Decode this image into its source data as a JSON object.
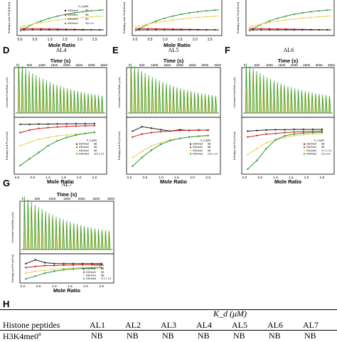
{
  "panels_top": [
    {
      "x_axis_label": "Mole Ratio",
      "y_axis_label": "Enthalpy and Fit (kJ/mol)",
      "legend_header": "K_d (μM)",
      "legend": [
        {
          "peptide": "H3K4me0",
          "kd": "NB",
          "color": "#222222"
        },
        {
          "peptide": "H3K4me1",
          "kd": "NB",
          "color": "#cc2222"
        },
        {
          "peptide": "H3K4me2",
          "kd": "ND",
          "color": "#e8d35a"
        },
        {
          "peptide": "H3K4me3",
          "kd": "30.0 ± 2",
          "color": "#2e9a3a"
        }
      ]
    },
    {
      "x_axis_label": "Mole Ratio",
      "y_axis_label": "Enthalpy and Fit (kJ/mol)"
    },
    {
      "y_axis_label": "Enthalpy and Fit (kJ/mol)"
    }
  ],
  "panels": [
    {
      "letter": "D",
      "title": "AL4",
      "time_axis_label": "Time (s)",
      "time_ticks": [
        "0",
        "500",
        "1000",
        "1500",
        "2000",
        "2500",
        "3000",
        "3500"
      ],
      "y_top_label": "Corrected Heat Rate (μJ/s)",
      "y_bottom_label": "Enthalpy and Fit (kJ/mol)",
      "x_axis_label": "Mole Ratio",
      "mole_ticks": [
        "0.0",
        "0.5",
        "1.0",
        "1.5",
        "2.0",
        "2.5"
      ],
      "legend_header": "K_d (μM)",
      "legend": [
        {
          "peptide": "H3K4me0",
          "kd": "NB",
          "color": "#222222"
        },
        {
          "peptide": "H3K4me1",
          "kd": "NB",
          "color": "#cc2222"
        },
        {
          "peptide": "H3K4me2",
          "kd": "NB",
          "color": "#e8d35a"
        },
        {
          "peptide": "H3K4me3",
          "kd": "22.0 ± 1.9",
          "color": "#2e9a3a"
        }
      ]
    },
    {
      "letter": "E",
      "title": "AL5",
      "time_axis_label": "Time (s)",
      "time_ticks": [
        "0",
        "500",
        "1000",
        "1500",
        "2000",
        "2500",
        "3000",
        "3500"
      ],
      "y_top_label": "Corrected Heat Rate (μJ/s)",
      "y_bottom_label": "Enthalpy and Fit (kJ/mol)",
      "x_axis_label": "Mole Ratio",
      "mole_ticks": [
        "0.0",
        "0.5",
        "1.0",
        "1.5",
        "2.0",
        "2.5"
      ],
      "legend_header": "K_d (μM)",
      "legend": [
        {
          "peptide": "H3K4me0",
          "kd": "NB",
          "color": "#222222"
        },
        {
          "peptide": "H3K4me1",
          "kd": "NB",
          "color": "#cc2222"
        },
        {
          "peptide": "H3K4me2",
          "kd": "NB",
          "color": "#e8d35a"
        },
        {
          "peptide": "H3K4me3",
          "kd": "22.0 ± 1.9",
          "color": "#2e9a3a"
        }
      ]
    },
    {
      "letter": "F",
      "title": "AL6",
      "time_axis_label": "Time (s)",
      "time_ticks": [
        "0",
        "500",
        "1000",
        "1500",
        "2000",
        "2500",
        "3000",
        "3500"
      ],
      "y_top_label": "Corrected Heat Rate (μJ/s)",
      "y_bottom_label": "Enthalpy and Fit (kJ/mol)",
      "x_axis_label": "Mole Ratio",
      "mole_ticks": [
        "0.0",
        "0.5",
        "1.0",
        "1.5",
        "2.0",
        "2.5"
      ],
      "legend_header": "K_d (μM)",
      "legend": [
        {
          "peptide": "H3K4me0",
          "kd": "NB",
          "color": "#222222"
        },
        {
          "peptide": "H3K4me1",
          "kd": "NB",
          "color": "#cc2222"
        },
        {
          "peptide": "H3K4me2",
          "kd": "17.1 ± 1.5",
          "color": "#e8d35a"
        },
        {
          "peptide": "H3K4me3",
          "kd": "0.9 ± 0.9",
          "color": "#2e9a3a"
        }
      ]
    },
    {
      "letter": "G",
      "title": "AL7",
      "time_axis_label": "Time (s)",
      "time_ticks": [
        "0",
        "500",
        "1000",
        "1500",
        "2000",
        "2500",
        "3000"
      ],
      "y_top_label": "Corrected Heat Rate (μJ/s)",
      "y_bottom_label": "Enthalpy and Fit (kJ/mol)",
      "x_axis_label": "Mole Ratio",
      "mole_ticks": [
        "0.0",
        "0.5",
        "1.0",
        "1.5",
        "2.0",
        "2.5"
      ],
      "legend_header": "K_d (μM)",
      "legend": [
        {
          "peptide": "H3K4me0",
          "kd": "NB",
          "color": "#222222"
        },
        {
          "peptide": "H3K4me1",
          "kd": "NB",
          "color": "#cc2222"
        },
        {
          "peptide": "H3K4me2",
          "kd": "NB",
          "color": "#e8d35a"
        },
        {
          "peptide": "H3K4me3",
          "kd": "27.2 ± 1.5",
          "color": "#2e9a3a"
        }
      ]
    }
  ],
  "table": {
    "letter": "H",
    "kd_header": "K_d (μM)",
    "col_header_first": "Histone peptides",
    "columns": [
      "AL1",
      "AL2",
      "AL3",
      "AL4",
      "AL5",
      "AL6",
      "AL7"
    ],
    "rows": [
      {
        "peptide": "H3K4me0",
        "superscript": "a",
        "values": [
          "NB",
          "NB",
          "NB",
          "NB",
          "NB",
          "NB",
          "NB"
        ]
      }
    ]
  },
  "chart_data": [
    {
      "type": "scatter",
      "panel": "D",
      "title": "AL4",
      "xlabel": "Mole Ratio",
      "ylabel": "Enthalpy and Fit (kJ/mol)",
      "xlim": [
        0,
        2.8
      ],
      "ylim": [
        -30,
        2
      ],
      "series": [
        {
          "name": "H3K4me0",
          "color": "#222222",
          "x": [
            0.1,
            0.4,
            0.7,
            1.0,
            1.3,
            1.6,
            1.9,
            2.2,
            2.5
          ],
          "y": [
            -1,
            -1,
            -0.8,
            -0.8,
            -0.7,
            -0.7,
            -0.6,
            -0.6,
            -0.6
          ]
        },
        {
          "name": "H3K4me1",
          "color": "#cc2222",
          "x": [
            0.1,
            0.4,
            0.7,
            1.0,
            1.3,
            1.6,
            1.9,
            2.2,
            2.5
          ],
          "y": [
            -6,
            -4.5,
            -3.5,
            -3,
            -2.6,
            -2.3,
            -2,
            -1.9,
            -1.8
          ]
        },
        {
          "name": "H3K4me2",
          "color": "#e8d35a",
          "x": [
            0.1,
            0.4,
            0.7,
            1.0,
            1.3,
            1.6,
            1.9,
            2.2,
            2.5
          ],
          "y": [
            -14,
            -12,
            -10,
            -9,
            -8,
            -7.5,
            -7,
            -6.5,
            -6
          ]
        },
        {
          "name": "H3K4me3",
          "color": "#2e9a3a",
          "x": [
            0.1,
            0.4,
            0.7,
            1.0,
            1.3,
            1.6,
            1.9,
            2.2,
            2.5
          ],
          "y": [
            -26,
            -22,
            -18,
            -14,
            -11,
            -9,
            -7.5,
            -6.5,
            -5.8
          ]
        }
      ]
    },
    {
      "type": "scatter",
      "panel": "E",
      "title": "AL5",
      "xlabel": "Mole Ratio",
      "ylabel": "Enthalpy and Fit (kJ/mol)",
      "xlim": [
        0,
        2.8
      ],
      "ylim": [
        -15,
        3
      ],
      "series": [
        {
          "name": "H3K4me0",
          "color": "#222222",
          "x": [
            0.1,
            0.4,
            0.7,
            1.0,
            1.3,
            1.6,
            1.9,
            2.2,
            2.5
          ],
          "y": [
            -1,
            0.5,
            0,
            -0.5,
            -1,
            -0.5,
            -0.8,
            -0.6,
            -0.7
          ]
        },
        {
          "name": "H3K4me1",
          "color": "#cc2222",
          "x": [
            0.1,
            0.4,
            0.7,
            1.0,
            1.3,
            1.6,
            1.9,
            2.2,
            2.5
          ],
          "y": [
            -3,
            -2,
            -1.5,
            -1.2,
            -1,
            -0.8,
            -0.7,
            -0.7,
            -0.6
          ]
        },
        {
          "name": "H3K4me2",
          "color": "#e8d35a",
          "x": [
            0.1,
            0.4,
            0.7,
            1.0,
            1.3,
            1.6,
            1.9,
            2.2,
            2.5
          ],
          "y": [
            -10,
            -8,
            -6,
            -5,
            -4,
            -3.5,
            -3,
            -2.8,
            -2.6
          ]
        },
        {
          "name": "H3K4me3",
          "color": "#2e9a3a",
          "x": [
            0.1,
            0.4,
            0.7,
            1.0,
            1.3,
            1.6,
            1.9,
            2.2,
            2.5
          ],
          "y": [
            -13,
            -10,
            -7.5,
            -5.5,
            -4.2,
            -3.5,
            -3,
            -2.7,
            -2.5
          ]
        }
      ]
    },
    {
      "type": "scatter",
      "panel": "F",
      "title": "AL6",
      "xlabel": "Mole Ratio",
      "ylabel": "Enthalpy and Fit (kJ/mol)",
      "xlim": [
        0,
        2.8
      ],
      "ylim": [
        -15,
        3
      ],
      "series": [
        {
          "name": "H3K4me0",
          "color": "#222222",
          "x": [
            0.1,
            0.4,
            0.7,
            1.0,
            1.3,
            1.6,
            1.9,
            2.2,
            2.5
          ],
          "y": [
            -1,
            -0.8,
            -0.6,
            -0.5,
            -0.5,
            -0.4,
            -0.4,
            -0.4,
            -0.4
          ]
        },
        {
          "name": "H3K4me1",
          "color": "#cc2222",
          "x": [
            0.1,
            0.4,
            0.7,
            1.0,
            1.3,
            1.6,
            1.9,
            2.2,
            2.5
          ],
          "y": [
            -3,
            -2.5,
            -2,
            -1.8,
            -1.5,
            -1.3,
            -1.2,
            -1.1,
            -1
          ]
        },
        {
          "name": "H3K4me2",
          "color": "#e8d35a",
          "x": [
            0.1,
            0.4,
            0.7,
            1.0,
            1.3,
            1.6,
            1.9,
            2.2,
            2.5
          ],
          "y": [
            -9,
            -7,
            -5,
            -4,
            -3.2,
            -2.6,
            -2.2,
            -2,
            -1.8
          ]
        },
        {
          "name": "H3K4me3",
          "color": "#2e9a3a",
          "x": [
            0.1,
            0.4,
            0.7,
            1.0,
            1.3,
            1.6,
            1.9,
            2.2,
            2.5
          ],
          "y": [
            -14,
            -11,
            -7,
            -4,
            -2.6,
            -2,
            -1.7,
            -1.5,
            -1.4
          ]
        }
      ]
    },
    {
      "type": "scatter",
      "panel": "G",
      "title": "AL7",
      "xlabel": "Mole Ratio",
      "ylabel": "Enthalpy and Fit (kJ/mol)",
      "xlim": [
        0,
        2.8
      ],
      "ylim": [
        -10,
        3
      ],
      "series": [
        {
          "name": "H3K4me0",
          "color": "#222222",
          "x": [
            0.1,
            0.4,
            0.7,
            1.0,
            1.3,
            1.6,
            1.9,
            2.2,
            2.5
          ],
          "y": [
            -1,
            1,
            -0.5,
            -1,
            -1,
            -1,
            -1,
            -1,
            -1
          ]
        },
        {
          "name": "H3K4me1",
          "color": "#cc2222",
          "x": [
            0.1,
            0.4,
            0.7,
            1.0,
            1.3,
            1.6,
            1.9,
            2.2,
            2.5
          ],
          "y": [
            -3,
            -2.5,
            -2,
            -2,
            -1.8,
            -1.7,
            -1.6,
            -1.6,
            -1.5
          ]
        },
        {
          "name": "H3K4me2",
          "color": "#e8d35a",
          "x": [
            0.1,
            0.4,
            0.7,
            1.0,
            1.3,
            1.6,
            1.9,
            2.2,
            2.5
          ],
          "y": [
            -6,
            -5,
            -4.5,
            -4,
            -3.6,
            -3.3,
            -3.1,
            -3,
            -3
          ]
        },
        {
          "name": "H3K4me3",
          "color": "#2e9a3a",
          "x": [
            0.1,
            0.4,
            0.7,
            1.0,
            1.3,
            1.6,
            1.9,
            2.2,
            2.5
          ],
          "y": [
            -9,
            -7.5,
            -6,
            -5,
            -4.2,
            -3.8,
            -3.5,
            -3.3,
            -3.2
          ]
        }
      ]
    }
  ]
}
